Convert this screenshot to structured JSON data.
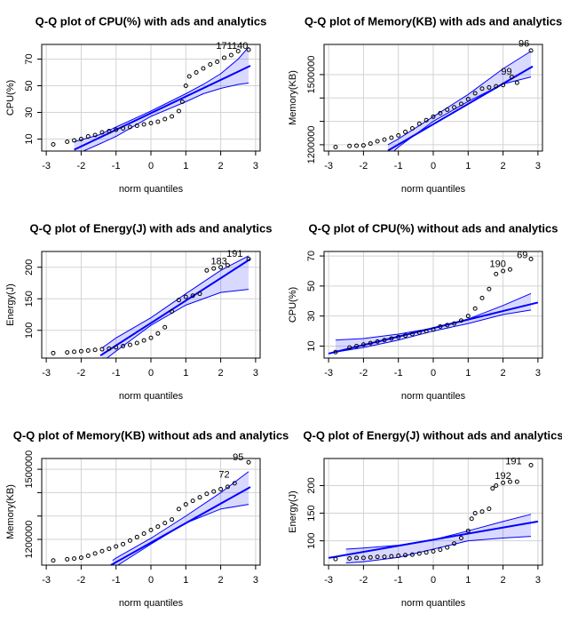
{
  "chart_data": [
    {
      "type": "scatter",
      "title": "Q-Q plot of CPU(%) with ads and analytics",
      "x_label": "norm quantiles",
      "y_label": "CPU(%)",
      "x": [
        -2.8,
        -2.4,
        -2.2,
        -2,
        -1.8,
        -1.6,
        -1.4,
        -1.2,
        -1,
        -0.8,
        -0.6,
        -0.4,
        -0.2,
        0,
        0.2,
        0.4,
        0.6,
        0.8,
        0.9,
        1,
        1.1,
        1.3,
        1.5,
        1.7,
        1.9,
        2.1,
        2.3,
        2.5,
        2.8
      ],
      "values": [
        6,
        8,
        9,
        10,
        12,
        13,
        15,
        16,
        17,
        18,
        19,
        20,
        21,
        22,
        23,
        25,
        27,
        31,
        38,
        50,
        57,
        60,
        63,
        66,
        68,
        71,
        73,
        76,
        77
      ],
      "ref_line": {
        "x": [
          -2.2,
          2.85
        ],
        "y": [
          2,
          65
        ]
      },
      "band": {
        "x": [
          -2.2,
          -1.5,
          -1,
          0,
          1,
          1.5,
          2,
          2.5,
          2.8
        ],
        "upper": [
          8,
          13,
          19,
          31,
          44,
          51,
          59,
          70,
          79
        ],
        "lower": [
          -2,
          6,
          12,
          27,
          38,
          44,
          48,
          51,
          52
        ]
      },
      "point_labels": [
        {
          "text": "171",
          "x": 2.1,
          "y": 77
        },
        {
          "text": "140",
          "x": 2.55,
          "y": 77
        }
      ],
      "xlim": [
        -3.13,
        3.13
      ],
      "ylim": [
        1,
        81
      ],
      "xticks": [
        -3,
        -2,
        -1,
        0,
        1,
        2,
        3
      ],
      "yticks": [
        10,
        30,
        50,
        70
      ],
      "grid": true,
      "color": "#0000ff"
    },
    {
      "type": "scatter",
      "title": "Q-Q plot of Memory(KB) with ads and analytics",
      "x_label": "norm quantiles",
      "y_label": "Memory(KB)",
      "x": [
        -2.8,
        -2.4,
        -2.2,
        -2,
        -1.8,
        -1.6,
        -1.4,
        -1.2,
        -1,
        -0.8,
        -0.6,
        -0.4,
        -0.2,
        0,
        0.2,
        0.4,
        0.6,
        0.8,
        1,
        1.2,
        1.4,
        1.6,
        1.8,
        2,
        2.25,
        2.4,
        2.8
      ],
      "values": [
        1190000,
        1195000,
        1196000,
        1197000,
        1205000,
        1215000,
        1222000,
        1230000,
        1240000,
        1255000,
        1270000,
        1290000,
        1305000,
        1320000,
        1335000,
        1350000,
        1360000,
        1375000,
        1395000,
        1420000,
        1440000,
        1445000,
        1450000,
        1455000,
        1490000,
        1465000,
        1603000
      ],
      "ref_line": {
        "x": [
          -1.3,
          2.85
        ],
        "y": [
          1175000,
          1535000
        ]
      },
      "band": {
        "x": [
          -1.3,
          -1,
          0,
          1,
          2,
          2.8
        ],
        "upper": [
          1200000,
          1225000,
          1320000,
          1415000,
          1525000,
          1600000
        ],
        "lower": [
          1150000,
          1190000,
          1300000,
          1385000,
          1460000,
          1490000
        ]
      },
      "point_labels": [
        {
          "text": "96",
          "x": 2.6,
          "y": 1615000
        },
        {
          "text": "99",
          "x": 2.1,
          "y": 1495000
        }
      ],
      "xlim": [
        -3.13,
        3.13
      ],
      "ylim": [
        1173000,
        1629000
      ],
      "xticks": [
        -3,
        -2,
        -1,
        0,
        1,
        2,
        3
      ],
      "yticks": [
        1200000,
        {
          "value": 1300000,
          "label": null
        },
        {
          "value": 1400000,
          "label": null
        },
        1500000
      ],
      "grid": true,
      "color": "#0000ff"
    },
    {
      "type": "scatter",
      "title": "Q-Q plot of Energy(J) with ads and analytics",
      "x_label": "norm quantiles",
      "y_label": "Energy(J)",
      "x": [
        -2.8,
        -2.4,
        -2.2,
        -2,
        -1.8,
        -1.6,
        -1.4,
        -1.2,
        -1,
        -0.8,
        -0.6,
        -0.4,
        -0.2,
        0,
        0.2,
        0.4,
        0.6,
        0.8,
        1,
        1.2,
        1.4,
        1.6,
        1.8,
        2,
        2.2,
        2.8
      ],
      "values": [
        64,
        65,
        66,
        67,
        68,
        69,
        70,
        71,
        73,
        75,
        77,
        80,
        84,
        88,
        95,
        105,
        130,
        148,
        153,
        155,
        158,
        195,
        198,
        200,
        203,
        213
      ],
      "ref_line": {
        "x": [
          -1.45,
          2.85
        ],
        "y": [
          60,
          213
        ]
      },
      "band": {
        "x": [
          -1.4,
          -1,
          0,
          1,
          2,
          2.8
        ],
        "upper": [
          72,
          88,
          120,
          158,
          195,
          218
        ],
        "lower": [
          50,
          67,
          108,
          140,
          160,
          165
        ]
      },
      "point_labels": [
        {
          "text": "191",
          "x": 2.4,
          "y": 215
        },
        {
          "text": "183",
          "x": 1.95,
          "y": 203
        }
      ],
      "xlim": [
        -3.13,
        3.13
      ],
      "ylim": [
        56,
        225
      ],
      "xticks": [
        -3,
        -2,
        -1,
        0,
        1,
        2,
        3
      ],
      "yticks": [
        100,
        150,
        200
      ],
      "grid": true,
      "color": "#0000ff"
    },
    {
      "type": "scatter",
      "title": "Q-Q plot of CPU(%) without ads and analytics",
      "x_label": "norm quantiles",
      "y_label": "CPU(%)",
      "x": [
        -2.8,
        -2.4,
        -2.2,
        -2,
        -1.8,
        -1.6,
        -1.4,
        -1.2,
        -1,
        -0.8,
        -0.6,
        -0.4,
        -0.2,
        0,
        0.2,
        0.4,
        0.6,
        0.8,
        1,
        1.2,
        1.4,
        1.6,
        1.8,
        2,
        2.2,
        2.8
      ],
      "values": [
        6,
        9,
        10,
        11,
        12,
        13,
        14,
        15,
        16,
        17,
        18,
        19,
        20,
        21,
        23,
        24,
        25,
        27,
        30,
        35,
        42,
        48,
        58,
        60,
        61,
        68
      ],
      "ref_line": {
        "x": [
          -3,
          3
        ],
        "y": [
          5,
          39
        ]
      },
      "band": {
        "x": [
          -2.8,
          -2,
          -1,
          0,
          1,
          2,
          2.8
        ],
        "upper": [
          14,
          15,
          18,
          22,
          28,
          37,
          45
        ],
        "lower": [
          6,
          9,
          14,
          20,
          25,
          31,
          34
        ]
      },
      "point_labels": [
        {
          "text": "190",
          "x": 1.85,
          "y": 62
        },
        {
          "text": "69",
          "x": 2.55,
          "y": 68
        }
      ],
      "xlim": [
        -3.13,
        3.13
      ],
      "ylim": [
        2,
        73
      ],
      "xticks": [
        -3,
        -2,
        -1,
        0,
        1,
        2,
        3
      ],
      "yticks": [
        10,
        30,
        50,
        70
      ],
      "grid": true,
      "color": "#0000ff"
    },
    {
      "type": "scatter",
      "title": "Q-Q plot of Memory(KB) without ads and analytics",
      "x_label": "norm quantiles",
      "y_label": "Memory(KB)",
      "x": [
        -2.8,
        -2.4,
        -2.2,
        -2,
        -1.8,
        -1.6,
        -1.4,
        -1.2,
        -1,
        -0.8,
        -0.6,
        -0.4,
        -0.2,
        0,
        0.2,
        0.4,
        0.6,
        0.8,
        1,
        1.2,
        1.4,
        1.6,
        1.8,
        2,
        2.2,
        2.4,
        2.8
      ],
      "values": [
        1110000,
        1115000,
        1118000,
        1122000,
        1130000,
        1140000,
        1150000,
        1160000,
        1170000,
        1180000,
        1195000,
        1210000,
        1225000,
        1240000,
        1255000,
        1270000,
        1285000,
        1330000,
        1350000,
        1365000,
        1380000,
        1395000,
        1405000,
        1415000,
        1425000,
        1440000,
        1530000
      ],
      "ref_line": {
        "x": [
          -1.15,
          2.85
        ],
        "y": [
          1090000,
          1424000
        ]
      },
      "band": {
        "x": [
          -1.1,
          -1,
          0,
          1,
          2,
          2.8
        ],
        "upper": [
          1110000,
          1120000,
          1205000,
          1300000,
          1400000,
          1490000
        ],
        "lower": [
          1075000,
          1085000,
          1180000,
          1270000,
          1330000,
          1350000
        ]
      },
      "point_labels": [
        {
          "text": "72",
          "x": 2.1,
          "y": 1460000
        },
        {
          "text": "95",
          "x": 2.5,
          "y": 1535000
        }
      ],
      "xlim": [
        -3.13,
        3.13
      ],
      "ylim": [
        1090000,
        1546000
      ],
      "xticks": [
        -3,
        -2,
        -1,
        0,
        1,
        2,
        3
      ],
      "yticks": [
        1200000,
        {
          "value": 1300000,
          "label": null
        },
        {
          "value": 1400000,
          "label": null
        },
        1500000
      ],
      "grid": true,
      "color": "#0000ff"
    },
    {
      "type": "scatter",
      "title": "Q-Q plot of Energy(J) without ads and analytics",
      "x_label": "norm quantiles",
      "y_label": "Energy(J)",
      "x": [
        -2.8,
        -2.4,
        -2.2,
        -2,
        -1.8,
        -1.6,
        -1.4,
        -1.2,
        -1,
        -0.8,
        -0.6,
        -0.4,
        -0.2,
        0,
        0.2,
        0.4,
        0.6,
        0.8,
        1,
        1.1,
        1.2,
        1.4,
        1.6,
        1.7,
        1.8,
        2,
        2.2,
        2.4,
        2.8
      ],
      "values": [
        67,
        68,
        69,
        69,
        70,
        71,
        71,
        72,
        73,
        74,
        75,
        77,
        79,
        81,
        84,
        88,
        95,
        105,
        118,
        140,
        150,
        153,
        158,
        195,
        200,
        205,
        207,
        207,
        237
      ],
      "ref_line": {
        "x": [
          -3,
          3
        ],
        "y": [
          69,
          135
        ]
      },
      "band": {
        "x": [
          -2.5,
          -2,
          -1,
          0,
          1,
          2,
          2.8
        ],
        "upper": [
          85,
          87,
          92,
          102,
          118,
          135,
          148
        ],
        "lower": [
          60,
          62,
          70,
          85,
          100,
          105,
          108
        ]
      },
      "point_labels": [
        {
          "text": "191",
          "x": 2.3,
          "y": 237
        },
        {
          "text": "192",
          "x": 2.0,
          "y": 210
        }
      ],
      "xlim": [
        -3.13,
        3.13
      ],
      "ylim": [
        56,
        249
      ],
      "xticks": [
        -3,
        -2,
        -1,
        0,
        1,
        2,
        3
      ],
      "yticks": [
        100,
        150,
        200
      ],
      "grid": true,
      "color": "#0000ff"
    }
  ]
}
